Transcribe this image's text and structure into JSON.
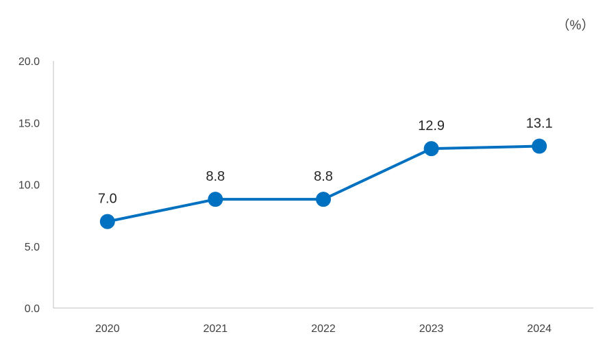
{
  "chart_data": {
    "type": "line",
    "title": "",
    "unit_label": "（%）",
    "xlabel": "",
    "ylabel": "",
    "categories": [
      "2020",
      "2021",
      "2022",
      "2023",
      "2024"
    ],
    "series": [
      {
        "values": [
          7.0,
          8.8,
          8.8,
          12.9,
          13.1
        ],
        "color": "#0070C0"
      }
    ],
    "data_labels": [
      "7.0",
      "8.8",
      "8.8",
      "12.9",
      "13.1"
    ],
    "y_tick_labels": [
      "0.0",
      "5.0",
      "10.0",
      "15.0",
      "20.0"
    ],
    "ylim": [
      0,
      20
    ],
    "y_ticks": [
      0,
      5,
      10,
      15,
      20
    ],
    "grid": false,
    "legend": "none"
  }
}
